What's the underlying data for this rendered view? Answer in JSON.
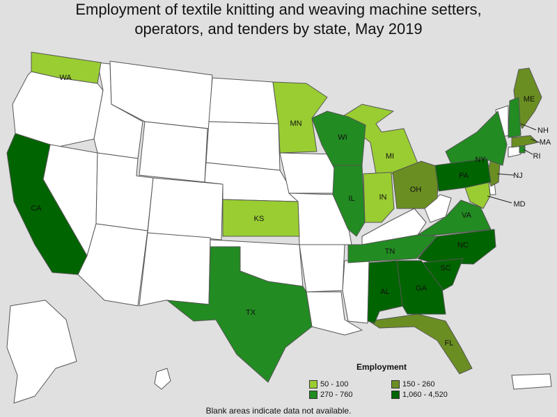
{
  "title_line1": "Employment of textile knitting and weaving machine setters,",
  "title_line2": "operators, and tenders by state, May 2019",
  "legend": {
    "title": "Employment",
    "items": [
      {
        "label": "50 - 100",
        "color": "#9acd32"
      },
      {
        "label": "150 - 260",
        "color": "#6b8e23"
      },
      {
        "label": "270 - 760",
        "color": "#228b22"
      },
      {
        "label": "1,060 - 4,520",
        "color": "#006400"
      }
    ]
  },
  "no_data_color": "#ffffff",
  "note": "Blank areas indicate data not available.",
  "state_labels": {
    "WA": "WA",
    "CA": "CA",
    "MN": "MN",
    "WI": "WI",
    "MI": "MI",
    "NY": "NY",
    "ME": "ME",
    "NH": "NH",
    "MA": "MA",
    "RI": "RI",
    "NJ": "NJ",
    "PA": "PA",
    "MD": "MD",
    "OH": "OH",
    "IN": "IN",
    "IL": "IL",
    "KS": "KS",
    "VA": "VA",
    "NC": "NC",
    "TN": "TN",
    "SC": "SC",
    "AL": "AL",
    "GA": "GA",
    "TX": "TX",
    "FL": "FL"
  }
}
